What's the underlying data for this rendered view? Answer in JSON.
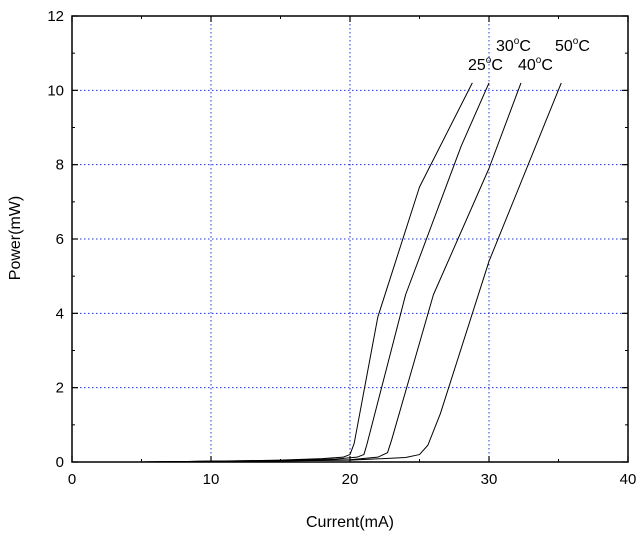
{
  "chart_data": {
    "type": "line",
    "xlabel": "Current(mA)",
    "ylabel": "Power(mW)",
    "xlim": [
      0,
      40
    ],
    "ylim": [
      0,
      12
    ],
    "xticks": [
      0,
      10,
      20,
      30,
      40
    ],
    "yticks": [
      0,
      2,
      4,
      6,
      8,
      10,
      12
    ],
    "xtick_labels": [
      "0",
      "10",
      "20",
      "30",
      "40"
    ],
    "ytick_labels": [
      "0",
      "2",
      "4",
      "6",
      "8",
      "10",
      "12"
    ],
    "grid": "dotted blue at major ticks",
    "series": [
      {
        "name": "25°C",
        "label_base": "25",
        "label_deg": "o",
        "label_unit": "C",
        "x": [
          5,
          10,
          15,
          18,
          19.5,
          20.0,
          20.3,
          22,
          25,
          28.8
        ],
        "y": [
          0.0,
          0.02,
          0.05,
          0.09,
          0.13,
          0.2,
          0.5,
          3.9,
          7.4,
          10.2
        ]
      },
      {
        "name": "30°C",
        "label_base": "30",
        "label_deg": "o",
        "label_unit": "C",
        "x": [
          5,
          10,
          15,
          19,
          20.5,
          21.0,
          21.2,
          24,
          28,
          30.0
        ],
        "y": [
          0.0,
          0.02,
          0.04,
          0.08,
          0.13,
          0.2,
          0.45,
          4.5,
          8.5,
          10.2
        ]
      },
      {
        "name": "40°C",
        "label_base": "40",
        "label_deg": "o",
        "label_unit": "C",
        "x": [
          5,
          10,
          15,
          20,
          22.0,
          22.7,
          23.0,
          26,
          30,
          32.3
        ],
        "y": [
          0.0,
          0.02,
          0.03,
          0.06,
          0.13,
          0.25,
          0.6,
          4.5,
          7.9,
          10.2
        ]
      },
      {
        "name": "50°C",
        "label_base": "50",
        "label_deg": "o",
        "label_unit": "C",
        "x": [
          5,
          10,
          15,
          20,
          24.0,
          25.0,
          25.6,
          26.5,
          30,
          35.2
        ],
        "y": [
          0.0,
          0.02,
          0.03,
          0.05,
          0.12,
          0.2,
          0.45,
          1.3,
          5.4,
          10.2
        ]
      }
    ]
  }
}
